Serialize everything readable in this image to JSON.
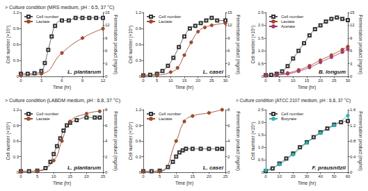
{
  "headings": [
    "> Culture condition (MRS medium, pH : 6.5, 37 °C)",
    "> Culture condition (LABDM medium, pH : 6.8, 37 °C)",
    "> Culture condition (ATCC 2107 medium, pH : 6.8, 37 °C)"
  ],
  "chart_data": [
    {
      "type": "line",
      "annotation": "L. plantarum",
      "xlabel": "Time (hr)",
      "ylabel": "Cell number (×10⁹)",
      "y2label": "Fermentation product (mg/ml)",
      "xlim": [
        0,
        12
      ],
      "xticks": [
        0,
        3,
        6,
        9,
        12
      ],
      "ylim": [
        0,
        1.2
      ],
      "yticks": [
        0,
        0.3,
        0.6,
        0.9,
        1.2
      ],
      "y2lim": [
        0,
        15
      ],
      "y2ticks": [
        0,
        3,
        6,
        9,
        12,
        15
      ],
      "legend": "upper left",
      "grid": false,
      "series": [
        {
          "name": "Cell number",
          "color": "#333333",
          "marker": "square_open",
          "line_style": "solid",
          "axis": "y",
          "x": [
            0,
            1,
            2,
            3,
            3.5,
            4,
            4.5,
            5,
            6,
            7,
            8,
            9,
            10,
            11,
            12
          ],
          "values": [
            0.05,
            0.05,
            0.06,
            0.1,
            0.25,
            0.5,
            0.75,
            0.95,
            1.05,
            1.05,
            1.1,
            1.1,
            1.1,
            1.1,
            1.1
          ]
        },
        {
          "name": "Lactate",
          "color": "#9c4a2e",
          "marker": "circle",
          "line_style": "solid",
          "axis": "y2",
          "x": [
            0,
            3,
            6,
            9,
            12
          ],
          "values": [
            0.3,
            0.6,
            5.5,
            9,
            11.2
          ]
        }
      ]
    },
    {
      "type": "line",
      "annotation": "L. casei",
      "xlabel": "Time (hr)",
      "ylabel": "Cell number (×10⁹)",
      "y2label": "Fermentation product (mg/ml)",
      "xlim": [
        0,
        30
      ],
      "xticks": [
        0,
        5,
        10,
        15,
        20,
        25,
        30
      ],
      "ylim": [
        0,
        1.2
      ],
      "yticks": [
        0,
        0.3,
        0.6,
        0.9,
        1.2
      ],
      "y2lim": [
        0,
        15
      ],
      "y2ticks": [
        0,
        3,
        6,
        9,
        12,
        15
      ],
      "legend": "upper left",
      "grid": false,
      "series": [
        {
          "name": "Cell number",
          "color": "#333333",
          "marker": "square_open",
          "line_style": "solid",
          "axis": "y",
          "x": [
            0,
            2.5,
            5,
            7,
            9,
            11,
            13,
            15,
            17,
            19,
            21,
            23,
            25,
            27,
            30
          ],
          "values": [
            0.02,
            0.03,
            0.05,
            0.1,
            0.2,
            0.35,
            0.55,
            0.75,
            0.9,
            0.95,
            1.0,
            1.05,
            1.1,
            1.05,
            1.05
          ]
        },
        {
          "name": "Lactate",
          "color": "#9c4a2e",
          "marker": "circle",
          "line_style": "solid",
          "axis": "y2",
          "x": [
            0,
            5,
            10,
            12.5,
            15,
            17.5,
            20,
            22.5,
            25,
            30
          ],
          "values": [
            0.2,
            0.3,
            1,
            2,
            5,
            8,
            10.5,
            11.5,
            12,
            12.5
          ]
        }
      ]
    },
    {
      "type": "line",
      "annotation": "B. longum",
      "xlabel": "Time (hr)",
      "ylabel": "Cell number (×10⁹)",
      "y2label": "Fermentation product (mg/ml)",
      "xlim": [
        0,
        30
      ],
      "xticks": [
        0,
        5,
        10,
        15,
        20,
        25,
        30
      ],
      "ylim": [
        0,
        2.5
      ],
      "yticks": [
        0,
        0.5,
        {
          "value": 1,
          "label": "1.0"
        },
        1.5,
        {
          "value": 2,
          "label": "2.0"
        },
        2.5
      ],
      "y2lim": [
        0,
        15
      ],
      "y2ticks": [
        0,
        3,
        6,
        9,
        12,
        15
      ],
      "legend": "upper left",
      "grid": false,
      "series": [
        {
          "name": "Cell number",
          "color": "#333333",
          "marker": "square_open",
          "line_style": "solid",
          "axis": "y",
          "x": [
            0,
            2,
            4,
            6,
            8,
            10,
            12,
            14,
            16,
            18,
            20,
            22,
            24,
            26,
            28,
            30
          ],
          "values": [
            0.05,
            0.06,
            0.1,
            0.2,
            0.4,
            0.7,
            1.0,
            1.3,
            1.6,
            1.85,
            2.0,
            2.15,
            2.25,
            2.3,
            2.25,
            2.2
          ]
        },
        {
          "name": "Lactate",
          "color": "#9c4a2e",
          "marker": "circle",
          "line_style": "solid",
          "axis": "y2",
          "x": [
            0,
            4,
            8,
            12,
            16,
            20,
            24,
            28,
            30
          ],
          "values": [
            0.3,
            0.4,
            0.8,
            1.5,
            2.5,
            3.8,
            5,
            6.3,
            7
          ]
        },
        {
          "name": "Acetate",
          "color": "#a8386e",
          "marker": "circle",
          "line_style": "solid",
          "axis": "y2",
          "x": [
            0,
            4,
            8,
            12,
            16,
            20,
            24,
            28,
            30
          ],
          "values": [
            0.2,
            0.3,
            0.6,
            1.2,
            2.1,
            3.3,
            4.5,
            5.7,
            6.4
          ]
        }
      ]
    },
    {
      "type": "line",
      "annotation": "L. plantarum",
      "xlabel": "Time (hr)",
      "ylabel": "Cell number (×10⁹)",
      "y2label": "Fermentation product (mg/ml)",
      "xlim": [
        0,
        25
      ],
      "xticks": [
        0,
        5,
        10,
        15,
        20,
        25
      ],
      "ylim": [
        0,
        1.2
      ],
      "yticks": [
        0,
        0.3,
        0.6,
        0.9,
        1.2
      ],
      "y2lim": [
        0,
        8
      ],
      "y2ticks": [
        0,
        2,
        4,
        6,
        8
      ],
      "legend": "upper left",
      "grid": false,
      "series": [
        {
          "name": "Cell number",
          "color": "#333333",
          "marker": "square_open",
          "line_style": "solid",
          "axis": "y",
          "x": [
            0,
            2.5,
            5,
            7.5,
            9,
            10,
            11,
            12,
            13,
            14,
            15,
            17,
            20,
            22.5,
            24
          ],
          "values": [
            0.02,
            0.02,
            0.03,
            0.08,
            0.2,
            0.35,
            0.5,
            0.65,
            0.8,
            0.9,
            0.95,
            1.0,
            1.05,
            1.05,
            1.05
          ]
        },
        {
          "name": "Lactate",
          "color": "#9c4a2e",
          "marker": "circle",
          "line_style": "solid",
          "axis": "y2",
          "x": [
            0,
            5,
            10,
            12.5,
            15,
            20,
            24
          ],
          "values": [
            0.1,
            0.15,
            1.5,
            4,
            6.5,
            7.5,
            7.8
          ]
        }
      ]
    },
    {
      "type": "line",
      "annotation": "L. casei",
      "xlabel": "Time (hr)",
      "ylabel": "Cell number (×10⁹)",
      "y2label": "Fermentation product (mg/ml)",
      "xlim": [
        0,
        25
      ],
      "xticks": [
        0,
        5,
        10,
        15,
        20,
        25
      ],
      "ylim": [
        0,
        1.2
      ],
      "yticks": [
        0,
        0.3,
        0.6,
        0.9,
        1.2
      ],
      "y2lim": [
        0,
        8
      ],
      "y2ticks": [
        0,
        2,
        4,
        6,
        8
      ],
      "legend": "upper left",
      "grid": false,
      "series": [
        {
          "name": "Cell number",
          "color": "#333333",
          "marker": "square_open",
          "line_style": "solid",
          "axis": "y",
          "x": [
            0,
            2.5,
            5,
            7.5,
            9,
            10,
            11,
            12,
            13,
            15,
            17.5,
            20,
            22.5,
            24
          ],
          "values": [
            0.02,
            0.02,
            0.03,
            0.1,
            0.2,
            0.3,
            0.38,
            0.42,
            0.45,
            0.45,
            0.45,
            0.45,
            0.45,
            0.45
          ]
        },
        {
          "name": "Lactate",
          "color": "#9c4a2e",
          "marker": "circle",
          "line_style": "solid",
          "axis": "y2",
          "x": [
            0,
            5,
            10,
            12.5,
            15,
            20,
            24
          ],
          "values": [
            0.1,
            0.1,
            4,
            6.5,
            7.2,
            7.6,
            8
          ]
        }
      ]
    },
    {
      "type": "line",
      "annotation": "F. prausnitzii",
      "xlabel": "Time (hr)",
      "ylabel": "Cell number (×10⁹)",
      "y2label": "Fermentation product (mg/ml)",
      "xlim": [
        0,
        60
      ],
      "xticks": [
        0,
        10,
        20,
        30,
        40,
        50,
        60
      ],
      "ylim": [
        0,
        2.5
      ],
      "yticks": [
        0,
        0.5,
        {
          "value": 1,
          "label": "1.0"
        },
        1.5,
        {
          "value": 2,
          "label": "2.0"
        },
        2.5
      ],
      "y2lim": [
        0,
        1.6
      ],
      "y2ticks": [
        0,
        0.4,
        0.8,
        1.2,
        1.6
      ],
      "legend": "upper left",
      "grid": false,
      "series": [
        {
          "name": "Cell number",
          "color": "#333333",
          "marker": "square_open",
          "line_style": "solid",
          "axis": "y",
          "x": [
            0,
            5,
            10,
            15,
            20,
            25,
            30,
            35,
            40,
            45,
            50,
            55,
            60
          ],
          "values": [
            0.05,
            0.15,
            0.35,
            0.55,
            0.75,
            1.0,
            1.2,
            1.4,
            1.6,
            1.75,
            1.9,
            2.0,
            2.05
          ]
        },
        {
          "name": "Butyrate",
          "color": "#2ab3b0",
          "marker": "circle",
          "line_style": "solid",
          "axis": "y2",
          "x": [
            0,
            10,
            20,
            30,
            40,
            50,
            60
          ],
          "values": [
            0.05,
            0.2,
            0.45,
            0.75,
            1.0,
            1.2,
            1.45
          ]
        }
      ]
    }
  ]
}
